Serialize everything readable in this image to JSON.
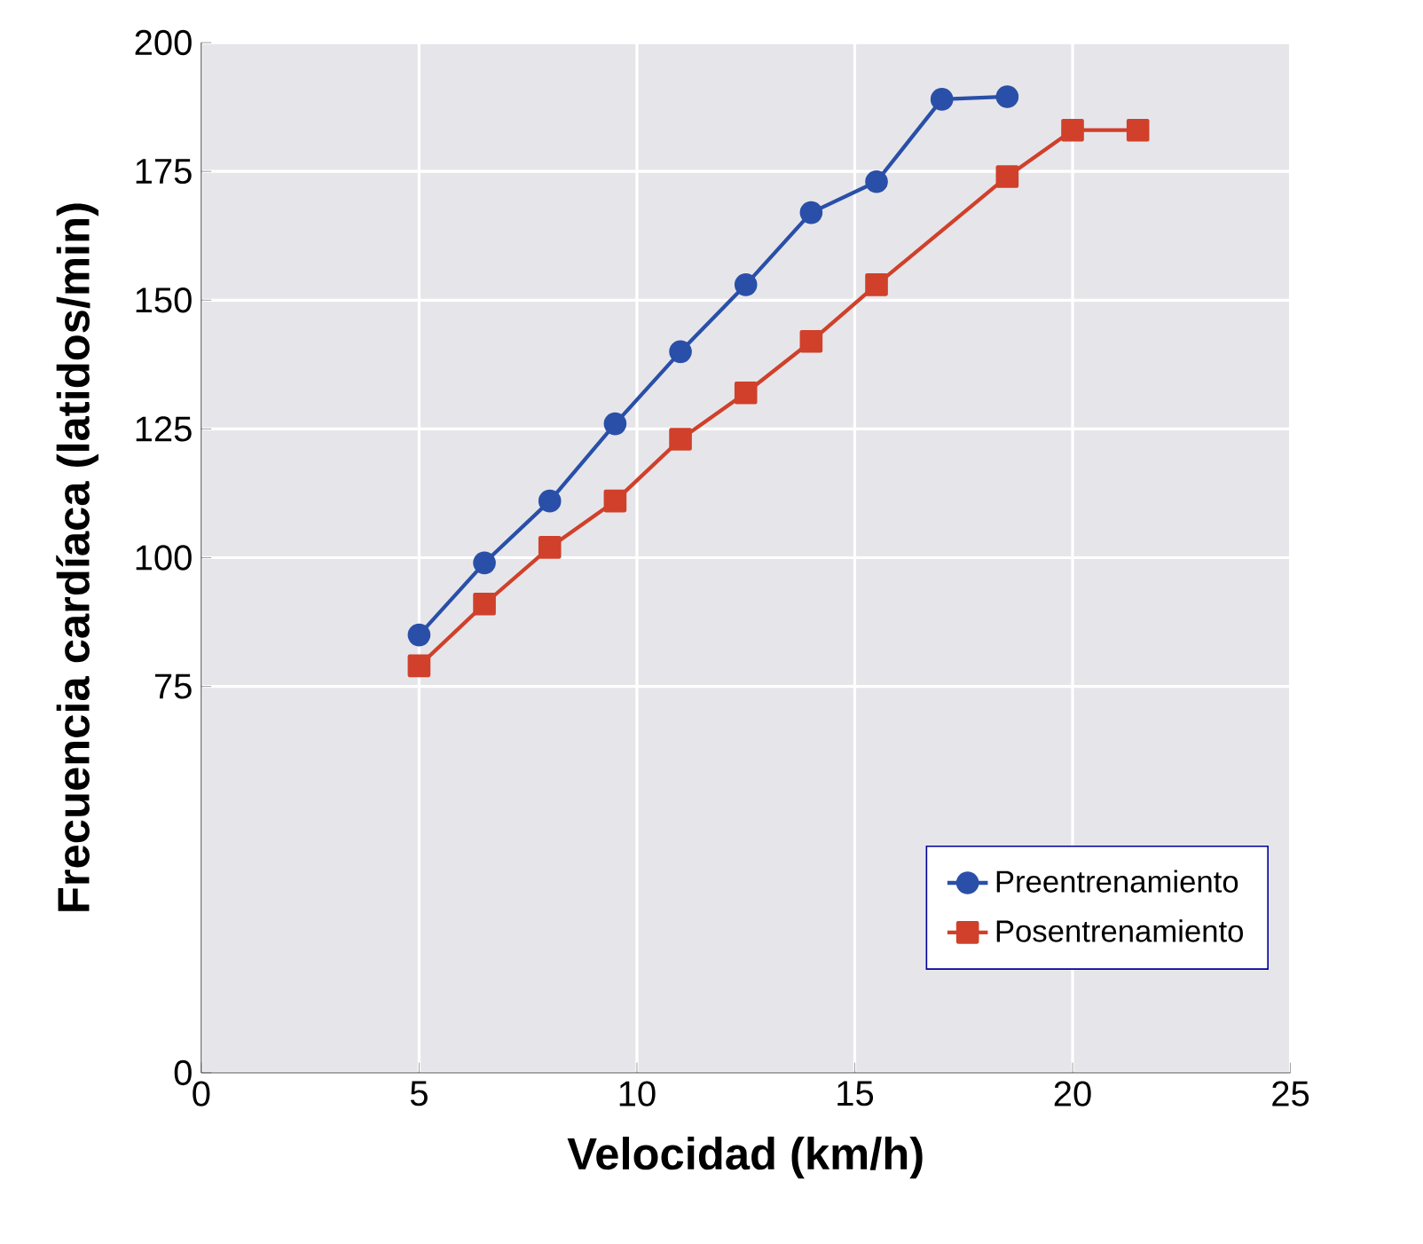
{
  "chart_data": {
    "type": "line",
    "xlabel": "Velocidad (km/h)",
    "ylabel": "Frecuencia cardíaca (latidos/min)",
    "xlim": [
      0,
      25
    ],
    "xticks": [
      0,
      5,
      10,
      15,
      20,
      25
    ],
    "ylim": [
      0,
      200
    ],
    "yticks": [
      0,
      75,
      100,
      125,
      150,
      175,
      200
    ],
    "grid": true,
    "legend": "bottom right",
    "line_style": "solid",
    "series": [
      {
        "name": "Preentrenamiento",
        "color": "#2a4fa8",
        "marker": "circle",
        "x": [
          5,
          6.5,
          8,
          9.5,
          11,
          12.5,
          14,
          15.5,
          17,
          18.5
        ],
        "values": [
          85,
          99,
          111,
          126,
          140,
          153,
          167,
          173,
          189,
          189.5
        ]
      },
      {
        "name": "Posentrenamiento",
        "color": "#d0402a",
        "marker": "square",
        "x": [
          5,
          6.5,
          8,
          9.5,
          11,
          12.5,
          14,
          15.5,
          18.5,
          20,
          21.5
        ],
        "values": [
          79,
          91,
          102,
          111,
          123,
          132,
          142,
          153,
          174,
          183,
          183
        ]
      }
    ]
  }
}
